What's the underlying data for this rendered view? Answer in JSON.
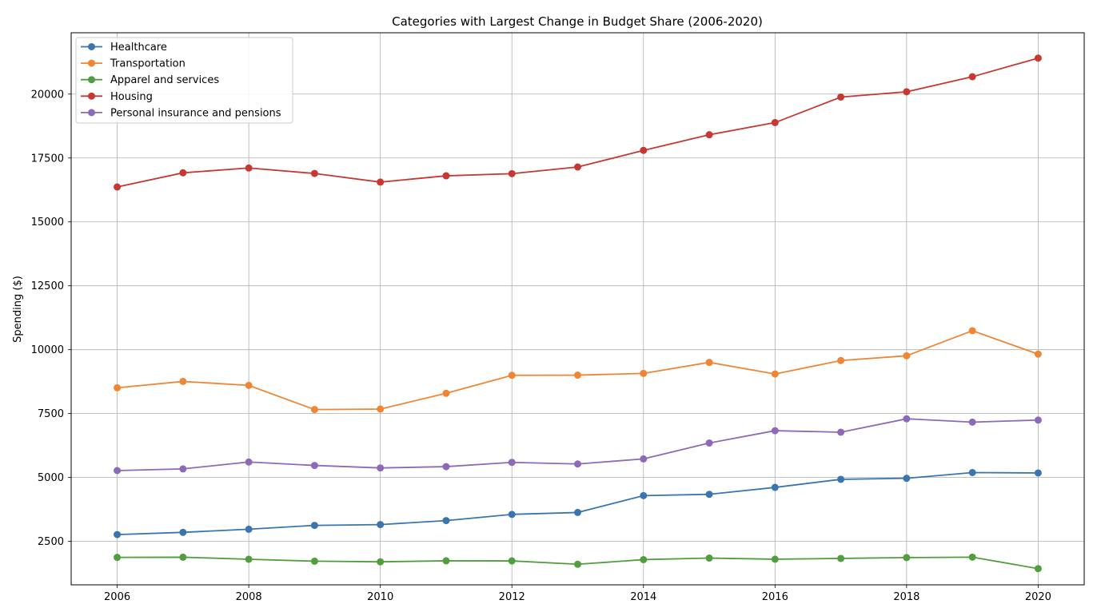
{
  "chart_data": {
    "type": "line",
    "title": "Categories with Largest Change in Budget Share (2006-2020)",
    "xlabel": "",
    "ylabel": "Spending ($)",
    "x": [
      2006,
      2007,
      2008,
      2009,
      2010,
      2011,
      2012,
      2013,
      2014,
      2015,
      2016,
      2017,
      2018,
      2019,
      2020
    ],
    "xticks": [
      2006,
      2008,
      2010,
      2012,
      2014,
      2016,
      2018,
      2020
    ],
    "xlim": [
      2005.3,
      2020.7
    ],
    "yticks": [
      2500,
      5000,
      7500,
      10000,
      12500,
      15000,
      17500,
      20000
    ],
    "ylim": [
      800,
      22400
    ],
    "grid": true,
    "legend_position": "top-left",
    "series": [
      {
        "name": "Healthcare",
        "color": "#3b75af",
        "values": [
          2766,
          2853,
          2976,
          3126,
          3157,
          3313,
          3556,
          3631,
          4290,
          4342,
          4612,
          4928,
          4968,
          5193,
          5177
        ]
      },
      {
        "name": "Transportation",
        "color": "#ef8636",
        "values": [
          8508,
          8758,
          8604,
          7658,
          7677,
          8293,
          8998,
          9004,
          9073,
          9503,
          9049,
          9576,
          9761,
          10742,
          9826
        ]
      },
      {
        "name": "Apparel and services",
        "color": "#519e3e",
        "values": [
          1874,
          1881,
          1801,
          1725,
          1700,
          1740,
          1736,
          1604,
          1786,
          1846,
          1803,
          1833,
          1866,
          1883,
          1434
        ]
      },
      {
        "name": "Housing",
        "color": "#c53932",
        "values": [
          16366,
          16920,
          17109,
          16895,
          16557,
          16803,
          16887,
          17148,
          17798,
          18409,
          18886,
          19884,
          20091,
          20679,
          21409
        ]
      },
      {
        "name": "Personal insurance and pensions",
        "color": "#8d69b8",
        "values": [
          5270,
          5336,
          5605,
          5471,
          5373,
          5424,
          5591,
          5528,
          5726,
          6349,
          6831,
          6771,
          7296,
          7165,
          7246
        ]
      }
    ]
  }
}
